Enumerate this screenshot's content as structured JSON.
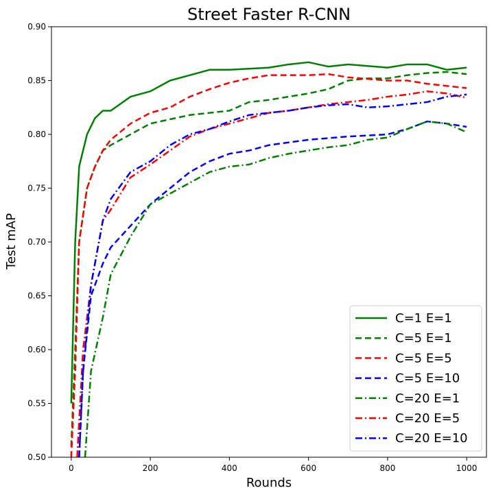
{
  "chart_data": {
    "type": "line",
    "title": "Street Faster R-CNN",
    "xlabel": "Rounds",
    "ylabel": "Test mAP",
    "xlim": [
      -50,
      1050
    ],
    "ylim": [
      0.5,
      0.9
    ],
    "xticks": [
      0,
      200,
      400,
      600,
      800,
      1000
    ],
    "xtick_labels": [
      "0",
      "200",
      "400",
      "600",
      "800",
      "1000"
    ],
    "yticks": [
      0.5,
      0.55,
      0.6,
      0.65,
      0.7,
      0.75,
      0.8,
      0.85,
      0.9
    ],
    "ytick_labels": [
      "0.50",
      "0.55",
      "0.60",
      "0.65",
      "0.70",
      "0.75",
      "0.80",
      "0.85",
      "0.90"
    ],
    "grid": false,
    "legend_position": "bottom-right",
    "series": [
      {
        "name": "C=1 E=1",
        "color": "#008000",
        "dash": "solid",
        "points": [
          [
            0,
            0.55
          ],
          [
            10,
            0.7
          ],
          [
            20,
            0.77
          ],
          [
            40,
            0.8
          ],
          [
            60,
            0.815
          ],
          [
            80,
            0.822
          ],
          [
            100,
            0.822
          ],
          [
            150,
            0.835
          ],
          [
            200,
            0.84
          ],
          [
            250,
            0.85
          ],
          [
            300,
            0.855
          ],
          [
            350,
            0.86
          ],
          [
            400,
            0.86
          ],
          [
            500,
            0.862
          ],
          [
            550,
            0.865
          ],
          [
            600,
            0.867
          ],
          [
            650,
            0.863
          ],
          [
            700,
            0.865
          ],
          [
            800,
            0.862
          ],
          [
            850,
            0.865
          ],
          [
            900,
            0.865
          ],
          [
            950,
            0.86
          ],
          [
            1000,
            0.862
          ]
        ]
      },
      {
        "name": "C=5 E=1",
        "color": "#008000",
        "dash": "dashed",
        "points": [
          [
            0,
            0.51
          ],
          [
            10,
            0.6
          ],
          [
            20,
            0.7
          ],
          [
            40,
            0.75
          ],
          [
            60,
            0.77
          ],
          [
            80,
            0.785
          ],
          [
            100,
            0.79
          ],
          [
            150,
            0.8
          ],
          [
            200,
            0.81
          ],
          [
            300,
            0.818
          ],
          [
            400,
            0.822
          ],
          [
            450,
            0.83
          ],
          [
            500,
            0.832
          ],
          [
            550,
            0.835
          ],
          [
            600,
            0.838
          ],
          [
            650,
            0.842
          ],
          [
            700,
            0.85
          ],
          [
            750,
            0.852
          ],
          [
            800,
            0.852
          ],
          [
            850,
            0.855
          ],
          [
            900,
            0.857
          ],
          [
            950,
            0.858
          ],
          [
            1000,
            0.856
          ]
        ]
      },
      {
        "name": "C=5 E=5",
        "color": "#ff0000",
        "dash": "dashed",
        "points": [
          [
            0,
            0.5
          ],
          [
            10,
            0.58
          ],
          [
            20,
            0.7
          ],
          [
            40,
            0.75
          ],
          [
            60,
            0.77
          ],
          [
            80,
            0.785
          ],
          [
            100,
            0.795
          ],
          [
            150,
            0.81
          ],
          [
            200,
            0.82
          ],
          [
            250,
            0.825
          ],
          [
            300,
            0.835
          ],
          [
            350,
            0.842
          ],
          [
            400,
            0.848
          ],
          [
            450,
            0.852
          ],
          [
            500,
            0.855
          ],
          [
            600,
            0.855
          ],
          [
            650,
            0.856
          ],
          [
            700,
            0.853
          ],
          [
            800,
            0.85
          ],
          [
            850,
            0.85
          ],
          [
            900,
            0.847
          ],
          [
            950,
            0.845
          ],
          [
            1000,
            0.843
          ]
        ]
      },
      {
        "name": "C=5 E=10",
        "color": "#0000ff",
        "dash": "dashed",
        "points": [
          [
            20,
            0.5
          ],
          [
            30,
            0.58
          ],
          [
            50,
            0.65
          ],
          [
            80,
            0.68
          ],
          [
            100,
            0.695
          ],
          [
            150,
            0.715
          ],
          [
            200,
            0.735
          ],
          [
            250,
            0.75
          ],
          [
            300,
            0.765
          ],
          [
            350,
            0.775
          ],
          [
            400,
            0.782
          ],
          [
            450,
            0.785
          ],
          [
            500,
            0.79
          ],
          [
            600,
            0.795
          ],
          [
            700,
            0.798
          ],
          [
            800,
            0.8
          ],
          [
            850,
            0.805
          ],
          [
            900,
            0.812
          ],
          [
            950,
            0.81
          ],
          [
            1000,
            0.807
          ]
        ]
      },
      {
        "name": "C=20 E=1",
        "color": "#008000",
        "dash": "dashdot",
        "points": [
          [
            35,
            0.5
          ],
          [
            50,
            0.58
          ],
          [
            80,
            0.63
          ],
          [
            100,
            0.67
          ],
          [
            150,
            0.705
          ],
          [
            200,
            0.735
          ],
          [
            250,
            0.745
          ],
          [
            300,
            0.755
          ],
          [
            350,
            0.765
          ],
          [
            400,
            0.77
          ],
          [
            450,
            0.772
          ],
          [
            500,
            0.778
          ],
          [
            550,
            0.782
          ],
          [
            600,
            0.785
          ],
          [
            650,
            0.788
          ],
          [
            700,
            0.79
          ],
          [
            750,
            0.795
          ],
          [
            800,
            0.797
          ],
          [
            850,
            0.805
          ],
          [
            900,
            0.812
          ],
          [
            950,
            0.81
          ],
          [
            1000,
            0.802
          ]
        ]
      },
      {
        "name": "C=20 E=5",
        "color": "#ff0000",
        "dash": "dashdot",
        "points": [
          [
            15,
            0.5
          ],
          [
            30,
            0.6
          ],
          [
            50,
            0.66
          ],
          [
            80,
            0.72
          ],
          [
            100,
            0.73
          ],
          [
            150,
            0.76
          ],
          [
            200,
            0.772
          ],
          [
            250,
            0.785
          ],
          [
            300,
            0.798
          ],
          [
            350,
            0.805
          ],
          [
            400,
            0.81
          ],
          [
            450,
            0.815
          ],
          [
            500,
            0.82
          ],
          [
            550,
            0.822
          ],
          [
            600,
            0.825
          ],
          [
            650,
            0.828
          ],
          [
            700,
            0.83
          ],
          [
            750,
            0.832
          ],
          [
            800,
            0.835
          ],
          [
            850,
            0.837
          ],
          [
            900,
            0.84
          ],
          [
            950,
            0.838
          ],
          [
            1000,
            0.834
          ]
        ]
      },
      {
        "name": "C=20 E=10",
        "color": "#0000ff",
        "dash": "dashdot",
        "points": [
          [
            20,
            0.5
          ],
          [
            30,
            0.58
          ],
          [
            50,
            0.66
          ],
          [
            80,
            0.72
          ],
          [
            100,
            0.74
          ],
          [
            150,
            0.765
          ],
          [
            200,
            0.775
          ],
          [
            250,
            0.79
          ],
          [
            300,
            0.8
          ],
          [
            350,
            0.805
          ],
          [
            400,
            0.812
          ],
          [
            450,
            0.818
          ],
          [
            500,
            0.82
          ],
          [
            550,
            0.822
          ],
          [
            600,
            0.825
          ],
          [
            650,
            0.827
          ],
          [
            700,
            0.828
          ],
          [
            750,
            0.825
          ],
          [
            800,
            0.826
          ],
          [
            850,
            0.828
          ],
          [
            900,
            0.83
          ],
          [
            950,
            0.835
          ],
          [
            1000,
            0.837
          ]
        ]
      }
    ]
  }
}
